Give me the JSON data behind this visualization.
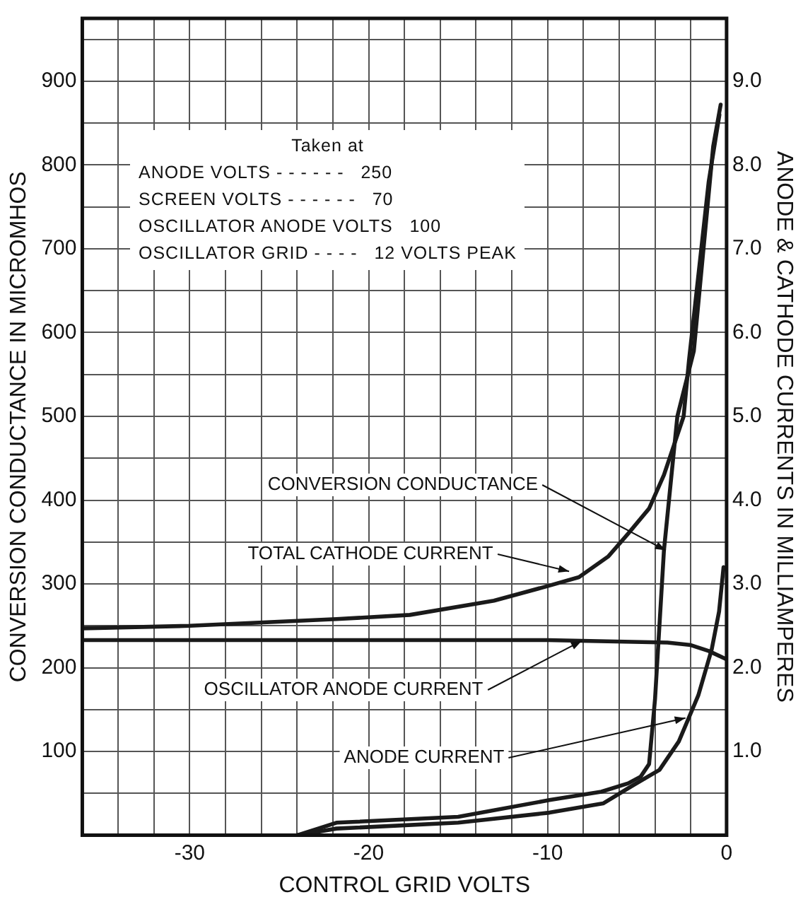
{
  "chart_data": {
    "type": "line",
    "xlabel": "CONTROL GRID VOLTS",
    "ylabel": "CONVERSION CONDUCTANCE IN MICROMHOS",
    "y2label": "ANODE & CATHODE CURRENTS IN MILLIAMPERES",
    "xlim": [
      -36,
      0
    ],
    "xticks": [
      {
        "value": -36,
        "label": null
      },
      {
        "value": -34,
        "label": null
      },
      {
        "value": -32,
        "label": null
      },
      -30,
      {
        "value": -28,
        "label": null
      },
      {
        "value": -26,
        "label": null
      },
      {
        "value": -24,
        "label": null
      },
      {
        "value": -22,
        "label": null
      },
      -20,
      {
        "value": -18,
        "label": null
      },
      {
        "value": -16,
        "label": null
      },
      {
        "value": -14,
        "label": null
      },
      {
        "value": -12,
        "label": null
      },
      -10,
      {
        "value": -8,
        "label": null
      },
      {
        "value": -6,
        "label": null
      },
      {
        "value": -4,
        "label": null
      },
      {
        "value": -2,
        "label": null
      },
      0
    ],
    "ylim": [
      0,
      975
    ],
    "yticks": [
      {
        "value": 0,
        "label": null
      },
      {
        "value": 50,
        "label": null
      },
      100,
      {
        "value": 150,
        "label": null
      },
      200,
      {
        "value": 250,
        "label": null
      },
      300,
      {
        "value": 350,
        "label": null
      },
      400,
      {
        "value": 450,
        "label": null
      },
      500,
      {
        "value": 550,
        "label": null
      },
      600,
      {
        "value": 650,
        "label": null
      },
      700,
      {
        "value": 750,
        "label": null
      },
      800,
      {
        "value": 850,
        "label": null
      },
      900,
      {
        "value": 950,
        "label": null
      }
    ],
    "y2lim": [
      0,
      9.75
    ],
    "y2ticks": [
      {
        "value": 0,
        "label": null
      },
      {
        "value": 0.5,
        "label": null
      },
      {
        "value": 1,
        "label": "1.0"
      },
      {
        "value": 1.5,
        "label": null
      },
      {
        "value": 2,
        "label": "2.0"
      },
      {
        "value": 2.5,
        "label": null
      },
      {
        "value": 3,
        "label": "3.0"
      },
      {
        "value": 3.5,
        "label": null
      },
      {
        "value": 4,
        "label": "4.0"
      },
      {
        "value": 4.5,
        "label": null
      },
      {
        "value": 5,
        "label": "5.0"
      },
      {
        "value": 5.5,
        "label": null
      },
      {
        "value": 6,
        "label": "6.0"
      },
      {
        "value": 6.5,
        "label": null
      },
      {
        "value": 7,
        "label": "7.0"
      },
      {
        "value": 7.5,
        "label": null
      },
      {
        "value": 8,
        "label": "8.0"
      },
      {
        "value": 8.5,
        "label": null
      },
      {
        "value": 9,
        "label": "9.0"
      },
      {
        "value": 9.5,
        "label": null
      }
    ],
    "grid": true,
    "legend": false,
    "marker": "none",
    "line_style": "solid",
    "series": [
      {
        "color": "#1a1a1a",
        "x": [
          -24,
          -21.8,
          -15,
          -9.9,
          -7,
          -5.5,
          -4.8,
          -4.33,
          -4,
          -3.5,
          -2.75,
          -1.83,
          -0.75,
          -0.33
        ],
        "values": [
          0,
          15,
          22,
          42,
          52,
          62,
          70,
          85,
          162,
          340,
          500,
          578,
          822,
          872
        ]
      },
      {
        "color": "#1a1a1a",
        "axis": "y2",
        "x": [
          -36,
          -30,
          -21.8,
          -17.7,
          -13,
          -9.9,
          -8.25,
          -6.6,
          -5.5,
          -4.33,
          -3.5,
          -2.4,
          -2.1,
          -1,
          -0.4
        ],
        "values": [
          2.47,
          2.5,
          2.58,
          2.63,
          2.8,
          2.98,
          3.08,
          3.33,
          3.6,
          3.9,
          4.3,
          5,
          5.67,
          7.8,
          8.6
        ]
      },
      {
        "color": "#1a1a1a",
        "axis": "y2",
        "x": [
          -36,
          -20,
          -10,
          -3.3,
          -2,
          -1,
          0
        ],
        "values": [
          2.33,
          2.33,
          2.33,
          2.3,
          2.27,
          2.2,
          2.1
        ]
      },
      {
        "color": "#1a1a1a",
        "axis": "y2",
        "x": [
          -24,
          -21.8,
          -15,
          -9.9,
          -6.9,
          -5.2,
          -3.75,
          -2.67,
          -1.58,
          -0.83,
          -0.42,
          -0.17
        ],
        "values": [
          0,
          0.08,
          0.15,
          0.27,
          0.38,
          0.6,
          0.78,
          1.12,
          1.67,
          2.22,
          2.67,
          3.2
        ]
      }
    ],
    "annotations": [
      "Taken at",
      "ANODE VOLTS - - - - - -   250",
      "SCREEN VOLTS - - - - - -   70",
      "OSCILLATOR ANODE VOLTS   100",
      "OSCILLATOR GRID - - - -   12 VOLTS PEAK",
      {
        "text": "CONVERSION CONDUCTANCE",
        "x": -3.4,
        "y": 340
      },
      {
        "text": "TOTAL CATHODE CURRENT",
        "x": -8.8,
        "y": 315
      },
      {
        "text": "OSCILLATOR ANODE CURRENT",
        "x": -8.1,
        "y": 232
      },
      {
        "text": "ANODE CURRENT",
        "x": -2.3,
        "y": 140
      }
    ]
  }
}
